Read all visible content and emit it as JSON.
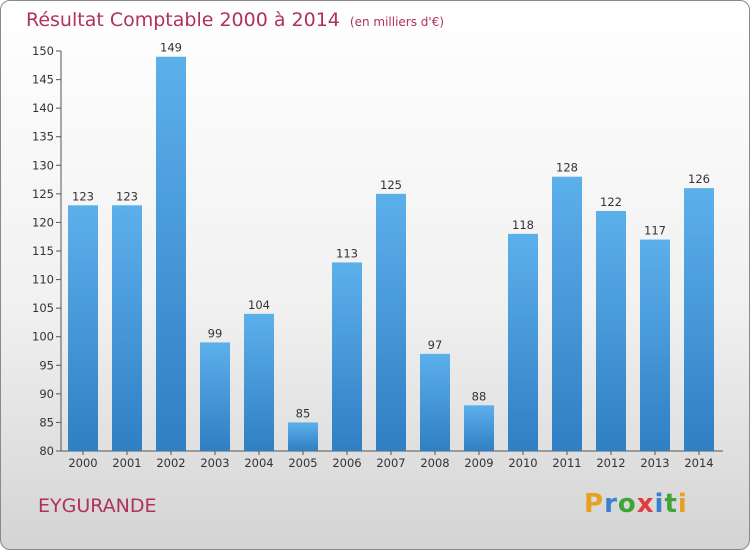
{
  "chart_data": {
    "type": "bar",
    "title": "Résultat Comptable 2000 à 2014",
    "subtitle": "(en milliers d'€)",
    "categories": [
      "2000",
      "2001",
      "2002",
      "2003",
      "2004",
      "2005",
      "2006",
      "2007",
      "2008",
      "2009",
      "2010",
      "2011",
      "2012",
      "2013",
      "2014"
    ],
    "values": [
      123,
      123,
      149,
      99,
      104,
      85,
      113,
      125,
      97,
      88,
      118,
      128,
      122,
      117,
      126
    ],
    "ylim": [
      80,
      150
    ],
    "yticks": [
      80,
      85,
      90,
      95,
      100,
      105,
      110,
      115,
      120,
      125,
      130,
      135,
      140,
      145,
      150
    ],
    "grid": false,
    "bar_color": "#4a9ee0"
  },
  "commune": "EYGURANDE",
  "logo": {
    "letters": [
      "P",
      "r",
      "o",
      "x",
      "i",
      "t",
      "i"
    ],
    "colors": [
      "#e8a020",
      "#3a7fd0",
      "#3fa535",
      "#e23b3b",
      "#3a7fd0",
      "#3fa535",
      "#e8a020"
    ]
  }
}
